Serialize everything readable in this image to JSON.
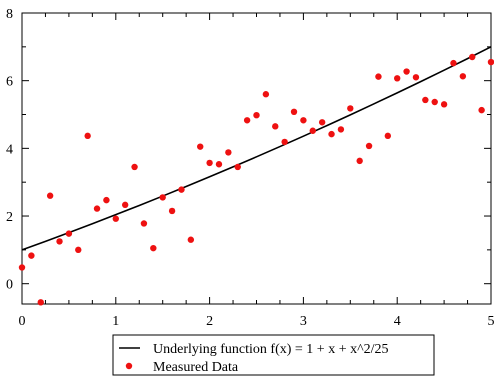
{
  "chart_data": {
    "type": "scatter",
    "title": "",
    "xlabel": "",
    "ylabel": "",
    "xlim": [
      0,
      5
    ],
    "ylim": [
      -0.6,
      8
    ],
    "x_ticks": [
      0,
      1,
      2,
      3,
      4,
      5
    ],
    "y_ticks": [
      0,
      2,
      4,
      6,
      8
    ],
    "x_tick_labels": [
      "0",
      "1",
      "2",
      "3",
      "4",
      "5"
    ],
    "y_tick_labels": [
      "0",
      "2",
      "4",
      "6",
      "8"
    ],
    "grid": false,
    "legend_position": "bottom-center",
    "series": [
      {
        "name": "Underlying function f(x) = 1 + x + x^2/25",
        "kind": "line",
        "color": "#000000",
        "x": [
          0,
          0.25,
          0.5,
          0.75,
          1,
          1.25,
          1.5,
          1.75,
          2,
          2.25,
          2.5,
          2.75,
          3,
          3.25,
          3.5,
          3.75,
          4,
          4.25,
          4.5,
          4.75,
          5
        ],
        "y": [
          1,
          1.2525,
          1.51,
          1.7725,
          2.04,
          2.3125,
          2.59,
          2.8725,
          3.16,
          3.4525,
          3.75,
          4.0525,
          4.36,
          4.6725,
          4.99,
          5.3125,
          5.64,
          5.9725,
          6.31,
          6.6525,
          7
        ]
      },
      {
        "name": "Measured Data",
        "kind": "scatter",
        "color": "#ee1111",
        "x": [
          0,
          0.1,
          0.2,
          0.3,
          0.4,
          0.5,
          0.6,
          0.7,
          0.8,
          0.9,
          1.0,
          1.1,
          1.2,
          1.3,
          1.4,
          1.5,
          1.6,
          1.7,
          1.8,
          1.9,
          2.0,
          2.1,
          2.2,
          2.3,
          2.4,
          2.5,
          2.6,
          2.7,
          2.8,
          2.9,
          3.0,
          3.1,
          3.2,
          3.3,
          3.4,
          3.5,
          3.6,
          3.7,
          3.8,
          3.9,
          4.0,
          4.1,
          4.2,
          4.3,
          4.4,
          4.5,
          4.6,
          4.7,
          4.8,
          4.9,
          5.0
        ],
        "y": [
          0.48,
          0.83,
          -0.55,
          2.6,
          1.25,
          1.48,
          1.0,
          4.37,
          2.22,
          2.47,
          1.92,
          2.33,
          3.45,
          1.78,
          1.05,
          2.55,
          2.15,
          2.78,
          1.3,
          4.05,
          3.57,
          3.53,
          3.88,
          3.45,
          4.83,
          4.98,
          5.6,
          4.65,
          4.19,
          5.08,
          4.83,
          4.52,
          4.77,
          4.42,
          4.56,
          5.18,
          3.63,
          4.07,
          6.12,
          4.37,
          6.07,
          6.27,
          6.1,
          5.43,
          5.37,
          5.3,
          6.52,
          6.13,
          6.7,
          5.13,
          6.55
        ]
      }
    ]
  }
}
